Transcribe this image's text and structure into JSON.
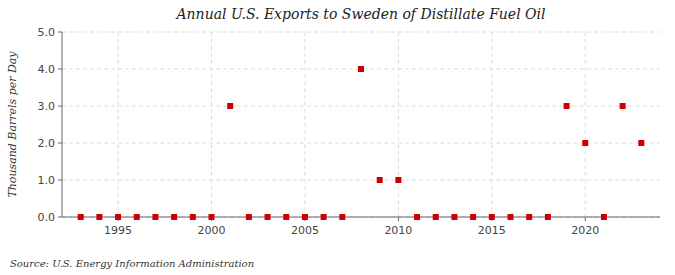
{
  "chart_data": {
    "type": "scatter",
    "title": "Annual U.S. Exports to Sweden of Distillate Fuel Oil",
    "y_label": "Thousand Barrels per Day",
    "source": "Source: U.S. Energy Information Administration",
    "x": [
      1993,
      1994,
      1995,
      1996,
      1997,
      1998,
      1999,
      2000,
      2001,
      2002,
      2003,
      2004,
      2005,
      2006,
      2007,
      2008,
      2009,
      2010,
      2011,
      2012,
      2013,
      2014,
      2015,
      2016,
      2017,
      2018,
      2019,
      2020,
      2021,
      2022,
      2023
    ],
    "values": [
      0,
      0,
      0,
      0,
      0,
      0,
      0,
      0,
      3,
      0,
      0,
      0,
      0,
      0,
      0,
      4,
      1,
      1,
      0,
      0,
      0,
      0,
      0,
      0,
      0,
      0,
      3,
      2,
      0,
      3,
      2
    ],
    "color": "#cc0000",
    "marker": "square",
    "xlim": [
      1992,
      2024
    ],
    "ylim": [
      0.0,
      5.0
    ],
    "xticks": [
      1995,
      2000,
      2005,
      2010,
      2015,
      2020
    ],
    "yticks": [
      {
        "value": 0.0,
        "label": "0.0"
      },
      {
        "value": 1.0,
        "label": "1.0"
      },
      {
        "value": 2.0,
        "label": "2.0"
      },
      {
        "value": 3.0,
        "label": "3.0"
      },
      {
        "value": 4.0,
        "label": "4.0"
      },
      {
        "value": 5.0,
        "label": "5.0"
      }
    ],
    "grid": true
  }
}
